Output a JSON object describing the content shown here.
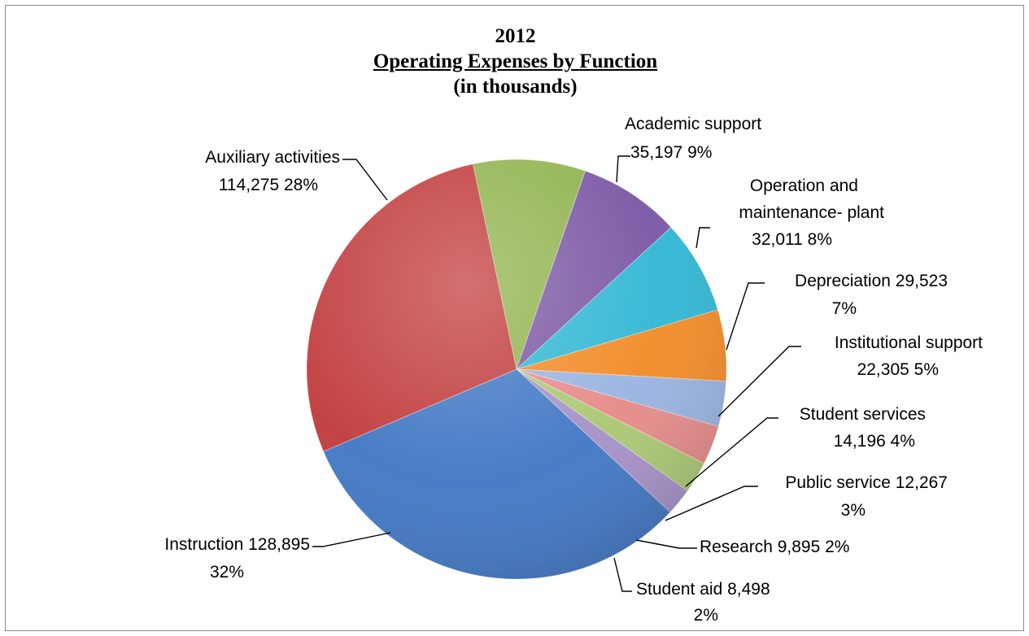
{
  "chart_data": {
    "type": "pie",
    "title_lines": [
      "2012",
      "Operating Expenses by Function",
      "(in thousands)"
    ],
    "slices": [
      {
        "label": "Academic support",
        "value": 35197,
        "value_text": "35,197",
        "percent_text": "9%",
        "color": "#8fb24a"
      },
      {
        "label": "Operation and maintenance- plant",
        "value": 32011,
        "value_text": "32,011",
        "percent_text": "8%",
        "color": "#7a55a3"
      },
      {
        "label": "Depreciation",
        "value": 29523,
        "value_text": "29,523",
        "percent_text": "7%",
        "color": "#2fb6d3"
      },
      {
        "label": "Institutional support",
        "value": 22305,
        "value_text": "22,305",
        "percent_text": "5%",
        "color": "#f28a25"
      },
      {
        "label": "Student services",
        "value": 14196,
        "value_text": "14,196",
        "percent_text": "4%",
        "color": "#98b3e0"
      },
      {
        "label": "Public service",
        "value": 12267,
        "value_text": "12,267",
        "percent_text": "3%",
        "color": "#e58a88"
      },
      {
        "label": "Research",
        "value": 9895,
        "value_text": "9,895",
        "percent_text": "2%",
        "color": "#a9c872"
      },
      {
        "label": "Student aid",
        "value": 8498,
        "value_text": "8,498",
        "percent_text": "2%",
        "color": "#a590c6"
      },
      {
        "label": "Instruction",
        "value": 128895,
        "value_text": "128,895",
        "percent_text": "32%",
        "color": "#3f76c4"
      },
      {
        "label": "Auxiliary activities",
        "value": 114275,
        "value_text": "114,275",
        "percent_text": "28%",
        "color": "#c0393a"
      }
    ],
    "start_angle_deg": -12,
    "direction": "clockwise",
    "legend": "none"
  }
}
